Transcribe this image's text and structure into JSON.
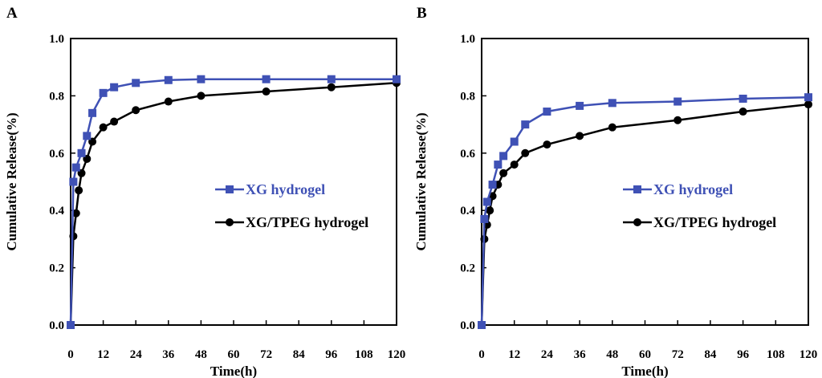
{
  "chart_data": [
    {
      "panel_label": "A",
      "type": "line",
      "xlabel": "Time(h)",
      "ylabel": "Cumulative Release(%)",
      "xlim": [
        0,
        120
      ],
      "ylim": [
        0,
        1.0
      ],
      "xticks": [
        "0",
        "12",
        "24",
        "36",
        "48",
        "60",
        "72",
        "84",
        "96",
        "108",
        "120"
      ],
      "yticks": [
        "0.0",
        "0.2",
        "0.4",
        "0.6",
        "0.8",
        "1.0"
      ],
      "grid": false,
      "legend_position": "center-right",
      "series": [
        {
          "name": "XG hydrogel",
          "color": "#3f51b5",
          "marker": "square",
          "x": [
            0,
            1,
            2,
            4,
            6,
            8,
            12,
            16,
            24,
            36,
            48,
            72,
            96,
            120
          ],
          "y": [
            0.0,
            0.5,
            0.55,
            0.6,
            0.66,
            0.74,
            0.81,
            0.83,
            0.845,
            0.855,
            0.858,
            0.858,
            0.858,
            0.858
          ]
        },
        {
          "name": "XG/TPEG hydrogel",
          "color": "#000000",
          "marker": "circle",
          "x": [
            0,
            1,
            2,
            3,
            4,
            6,
            8,
            12,
            16,
            24,
            36,
            48,
            72,
            96,
            120
          ],
          "y": [
            0.0,
            0.31,
            0.39,
            0.47,
            0.53,
            0.58,
            0.64,
            0.69,
            0.71,
            0.75,
            0.78,
            0.8,
            0.815,
            0.83,
            0.845
          ]
        }
      ]
    },
    {
      "panel_label": "B",
      "type": "line",
      "xlabel": "Time(h)",
      "ylabel": "Cumulative Release(%)",
      "xlim": [
        0,
        120
      ],
      "ylim": [
        0,
        1.0
      ],
      "xticks": [
        "0",
        "12",
        "24",
        "36",
        "48",
        "60",
        "72",
        "84",
        "96",
        "108",
        "120"
      ],
      "yticks": [
        "0.0",
        "0.2",
        "0.4",
        "0.6",
        "0.8",
        "1.0"
      ],
      "grid": false,
      "legend_position": "center-right",
      "series": [
        {
          "name": "XG hydrogel",
          "color": "#3f51b5",
          "marker": "square",
          "x": [
            0,
            1,
            2,
            4,
            6,
            8,
            12,
            16,
            24,
            36,
            48,
            72,
            96,
            120
          ],
          "y": [
            0.0,
            0.37,
            0.43,
            0.49,
            0.56,
            0.59,
            0.64,
            0.7,
            0.745,
            0.765,
            0.775,
            0.78,
            0.79,
            0.795
          ]
        },
        {
          "name": "XG/TPEG hydrogel",
          "color": "#000000",
          "marker": "circle",
          "x": [
            0,
            1,
            2,
            3,
            4,
            6,
            8,
            12,
            16,
            24,
            36,
            48,
            72,
            96,
            120
          ],
          "y": [
            0.0,
            0.3,
            0.35,
            0.4,
            0.45,
            0.49,
            0.53,
            0.56,
            0.6,
            0.63,
            0.66,
            0.69,
            0.715,
            0.745,
            0.77
          ]
        }
      ]
    }
  ]
}
